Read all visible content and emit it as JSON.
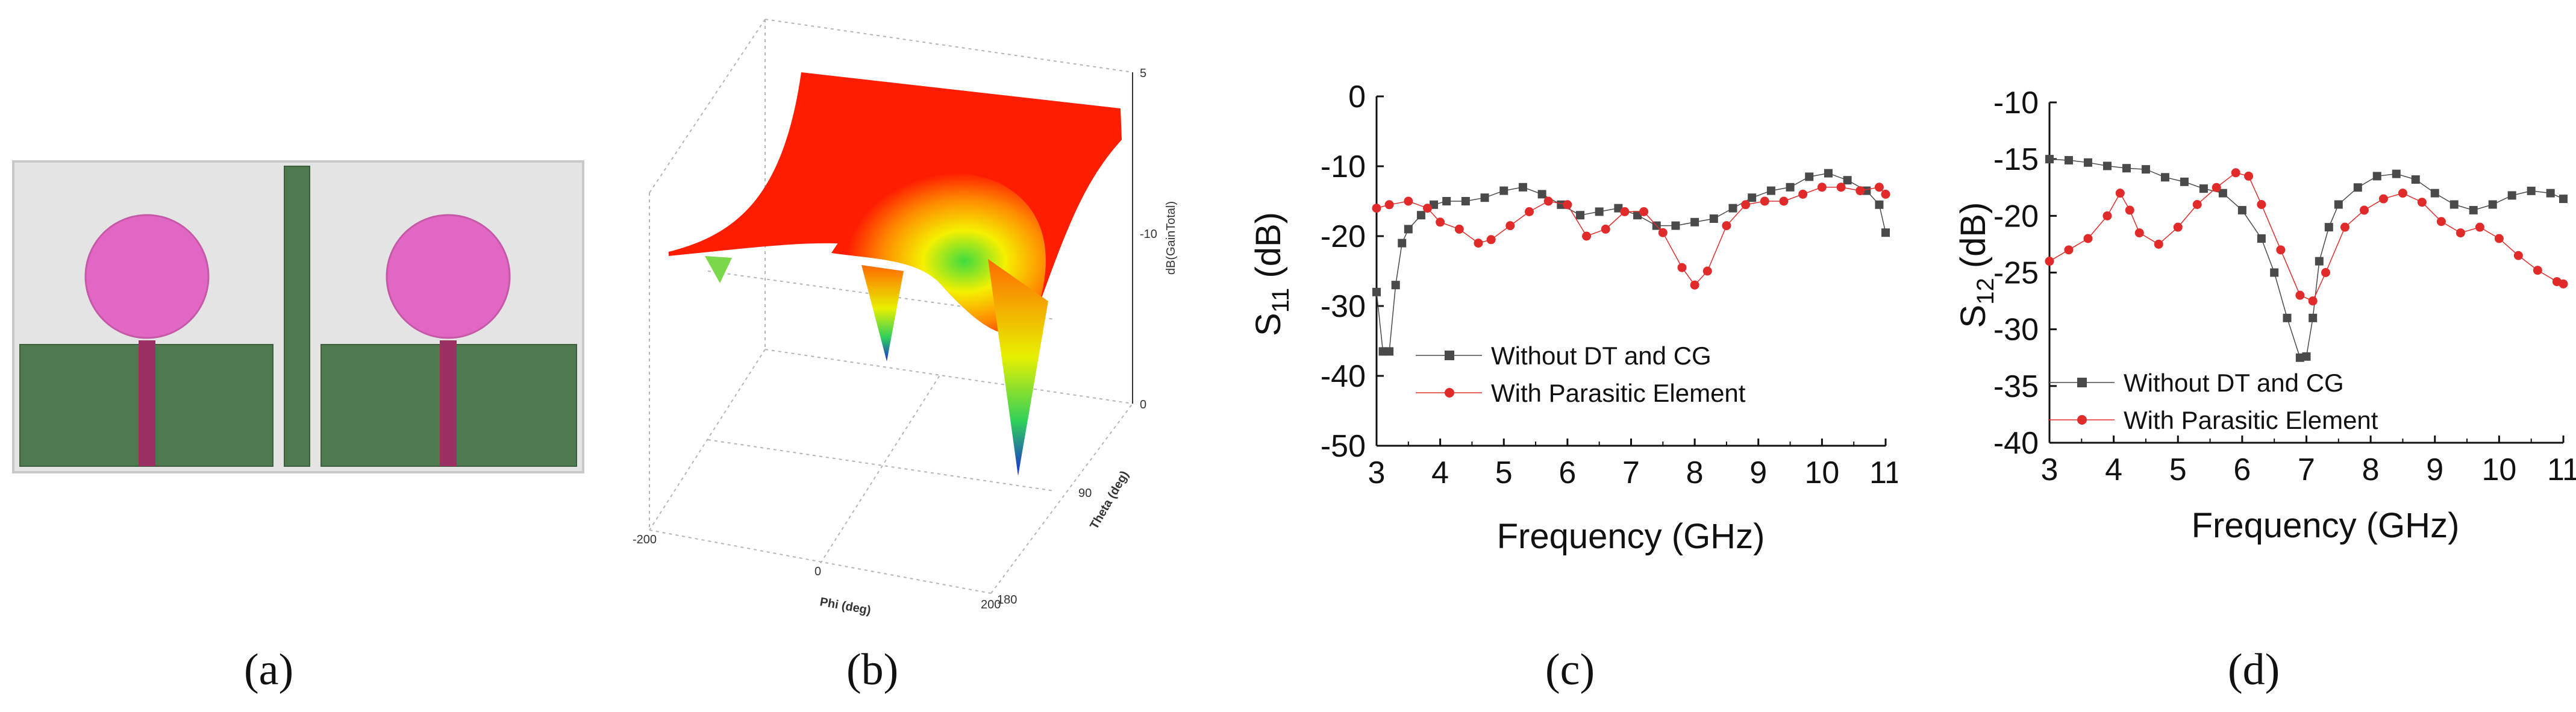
{
  "captions": [
    "(a)",
    "(b)",
    "(c)",
    "(d)"
  ],
  "colors": {
    "substrate": "#e4e4e4",
    "ground": "#4f7a4f",
    "patch": "#e266c3",
    "feed": "#9b3163",
    "series_dark": "#4a4a4a",
    "series_red": "#e12b2b"
  },
  "panel_b": {
    "z_label": "dB(GainTotal)",
    "z_ticks": [
      "5",
      "-10",
      "0"
    ],
    "x_label": "Phi (deg)",
    "x_ticks": [
      "-200",
      "0",
      "200"
    ],
    "y_label": "Theta (deg)",
    "y_ticks": [
      "90",
      "180"
    ]
  },
  "chart_data": [
    {
      "id": "c",
      "type": "scatter",
      "title": "",
      "xlabel": "Frequency (GHz)",
      "ylabel_main": "S",
      "ylabel_sub": "11",
      "ylabel_unit": " (dB)",
      "xlim": [
        3,
        11
      ],
      "ylim": [
        -50,
        0
      ],
      "xticks": [
        3,
        4,
        5,
        6,
        7,
        8,
        9,
        10,
        11
      ],
      "yticks": [
        0,
        -10,
        -20,
        -30,
        -40,
        -50
      ],
      "legend_position": "lower-center",
      "series": [
        {
          "name": "Without DT and CG",
          "marker": "square",
          "color": "#4a4a4a",
          "x": [
            3.0,
            3.1,
            3.2,
            3.3,
            3.4,
            3.5,
            3.7,
            3.9,
            4.1,
            4.4,
            4.7,
            5.0,
            5.3,
            5.6,
            5.9,
            6.2,
            6.5,
            6.8,
            7.1,
            7.4,
            7.7,
            8.0,
            8.3,
            8.6,
            8.9,
            9.2,
            9.5,
            9.8,
            10.1,
            10.4,
            10.7,
            10.9,
            11.0
          ],
          "y": [
            -28,
            -36.5,
            -36.5,
            -27,
            -21,
            -19,
            -17,
            -15.5,
            -15,
            -15,
            -14.5,
            -13.5,
            -13,
            -14,
            -15.5,
            -17,
            -16.5,
            -16,
            -17,
            -18.5,
            -18.5,
            -18,
            -17.5,
            -16,
            -14.5,
            -13.5,
            -13,
            -11.5,
            -11,
            -12,
            -13.5,
            -15.5,
            -19.5
          ]
        },
        {
          "name": "With Parasitic Element",
          "marker": "circle",
          "color": "#e12b2b",
          "x": [
            3.0,
            3.2,
            3.5,
            3.8,
            4.0,
            4.3,
            4.6,
            4.8,
            5.1,
            5.4,
            5.7,
            6.0,
            6.3,
            6.6,
            6.9,
            7.2,
            7.5,
            7.8,
            8.0,
            8.2,
            8.5,
            8.8,
            9.1,
            9.4,
            9.7,
            10.0,
            10.3,
            10.6,
            10.9,
            11.0
          ],
          "y": [
            -16,
            -15.5,
            -15,
            -16,
            -18,
            -19,
            -21,
            -20.5,
            -18.5,
            -16.5,
            -15,
            -15.5,
            -20,
            -19,
            -16.5,
            -16.5,
            -19.5,
            -24.5,
            -27,
            -25,
            -18.5,
            -15.5,
            -15,
            -15,
            -14,
            -13,
            -13,
            -13.5,
            -13,
            -14
          ]
        }
      ]
    },
    {
      "id": "d",
      "type": "scatter",
      "title": "",
      "xlabel": "Frequency (GHz)",
      "ylabel_main": "S",
      "ylabel_sub": "12",
      "ylabel_unit": " (dB)",
      "xlim": [
        3,
        11
      ],
      "ylim": [
        -40,
        -10
      ],
      "xticks": [
        3,
        4,
        5,
        6,
        7,
        8,
        9,
        10,
        11
      ],
      "yticks": [
        -10,
        -15,
        -20,
        -25,
        -30,
        -35,
        -40
      ],
      "legend_position": "lower-left",
      "series": [
        {
          "name": "Without DT and CG",
          "marker": "square",
          "color": "#4a4a4a",
          "x": [
            3.0,
            3.3,
            3.6,
            3.9,
            4.2,
            4.5,
            4.8,
            5.1,
            5.4,
            5.7,
            6.0,
            6.3,
            6.5,
            6.7,
            6.9,
            7.0,
            7.1,
            7.2,
            7.35,
            7.5,
            7.8,
            8.1,
            8.4,
            8.7,
            9.0,
            9.3,
            9.6,
            9.9,
            10.2,
            10.5,
            10.8,
            11.0
          ],
          "y": [
            -15,
            -15.1,
            -15.3,
            -15.6,
            -15.8,
            -15.9,
            -16.6,
            -17,
            -17.6,
            -18,
            -19.5,
            -22,
            -25,
            -29,
            -32.5,
            -32.4,
            -29,
            -24,
            -21,
            -19,
            -17.5,
            -16.5,
            -16.3,
            -16.8,
            -18,
            -19,
            -19.5,
            -19,
            -18.2,
            -17.8,
            -18,
            -18.5
          ]
        },
        {
          "name": "With Parasitic Element",
          "marker": "circle",
          "color": "#e12b2b",
          "x": [
            3.0,
            3.3,
            3.6,
            3.9,
            4.1,
            4.25,
            4.4,
            4.7,
            5.0,
            5.3,
            5.6,
            5.9,
            6.1,
            6.3,
            6.6,
            6.9,
            7.1,
            7.3,
            7.6,
            7.9,
            8.2,
            8.5,
            8.8,
            9.1,
            9.4,
            9.7,
            10.0,
            10.3,
            10.6,
            10.9,
            11.0
          ],
          "y": [
            -24,
            -23,
            -22,
            -20,
            -18,
            -19.5,
            -21.5,
            -22.5,
            -21,
            -19,
            -17.5,
            -16.2,
            -16.5,
            -19,
            -23,
            -27,
            -27.5,
            -25,
            -21,
            -19.5,
            -18.5,
            -18,
            -18.8,
            -20.5,
            -21.5,
            -21,
            -22,
            -23.5,
            -24.8,
            -25.8,
            -26
          ]
        }
      ]
    }
  ]
}
